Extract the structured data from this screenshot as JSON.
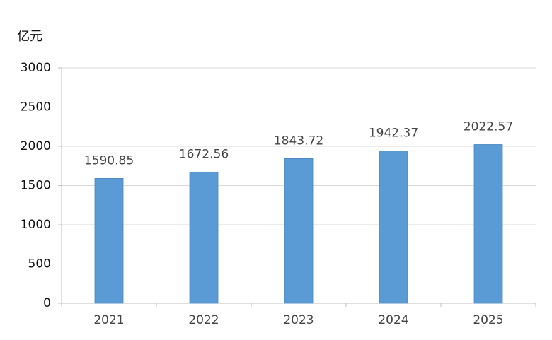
{
  "chart_data": {
    "type": "bar",
    "y_axis_label": "亿元",
    "categories": [
      "2021",
      "2022",
      "2023",
      "2024",
      "2025"
    ],
    "values": [
      1590.85,
      1672.56,
      1843.72,
      1942.37,
      2022.57
    ],
    "color": "#5b9bd5",
    "ylim": [
      0,
      3000
    ],
    "yticks": [
      0,
      500,
      1000,
      1500,
      2000,
      2500,
      3000
    ],
    "grid": true
  }
}
